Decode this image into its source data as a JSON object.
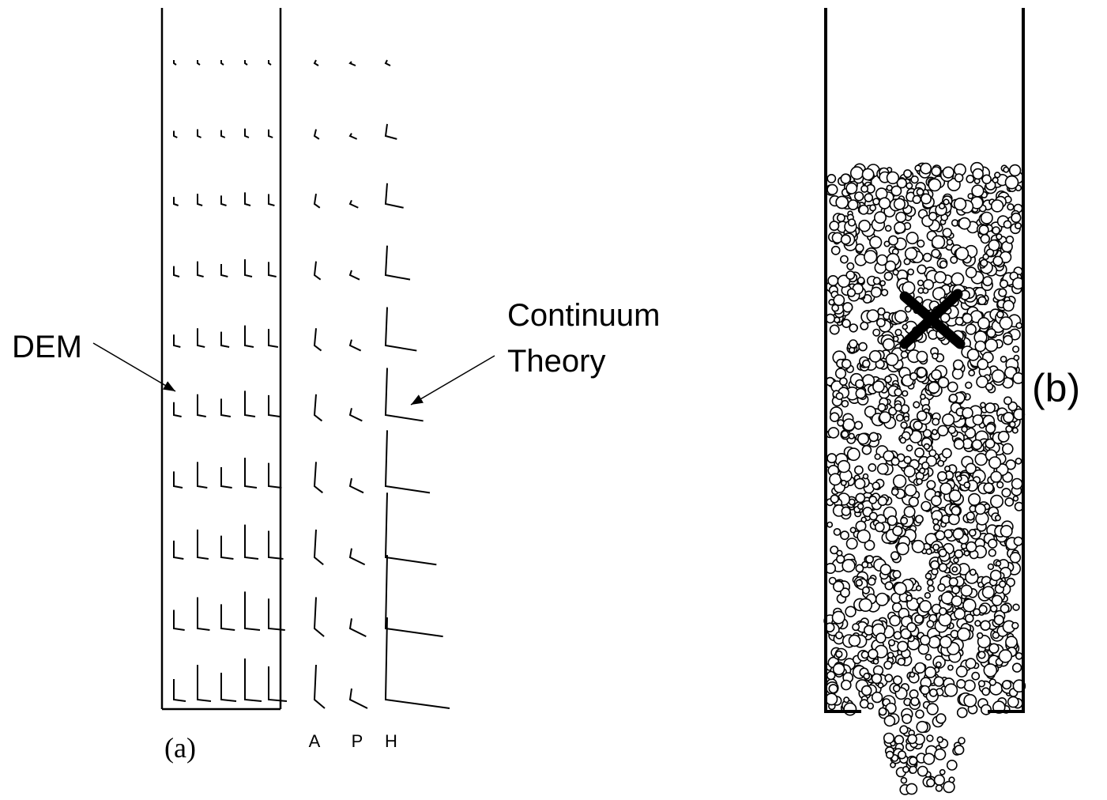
{
  "panel_a": {
    "left_label": "DEM",
    "right_label_line1": "Continuum",
    "right_label_line2": "Theory",
    "caption": "(a)",
    "columns": [
      "A",
      "P",
      "H"
    ]
  },
  "panel_b": {
    "caption": "(b)"
  }
}
